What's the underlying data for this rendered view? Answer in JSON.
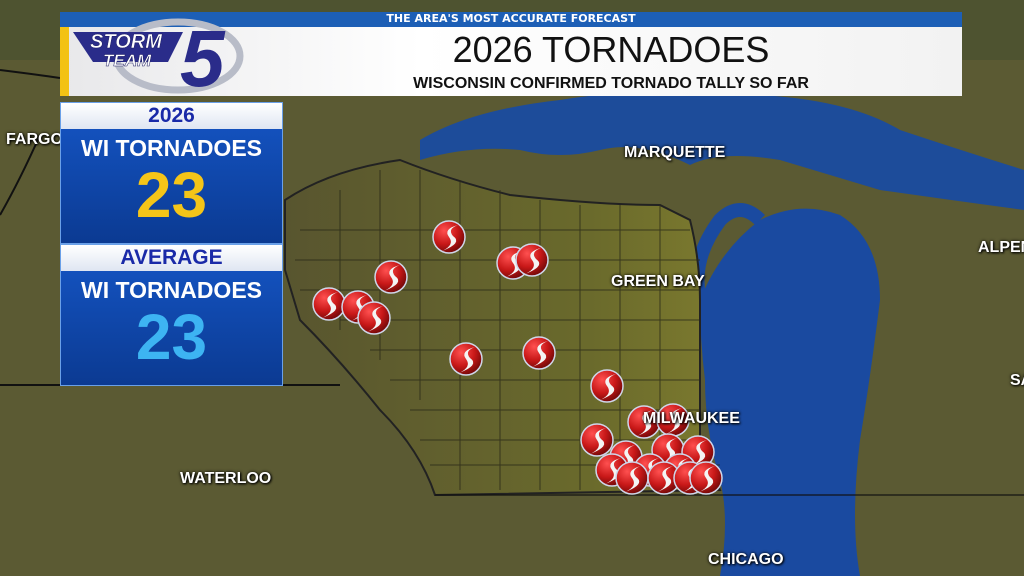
{
  "header": {
    "tagline": "THE AREA'S MOST ACCURATE FORECAST",
    "title": "2026 TORNADOES",
    "subtitle": "WISCONSIN CONFIRMED TORNADO TALLY SO FAR",
    "logo_text": [
      "STORM",
      "TEAM",
      "5"
    ]
  },
  "panels": [
    {
      "year": "2026",
      "label": "WI TORNADOES",
      "value": "23",
      "value_color": "#f5c518"
    },
    {
      "year": "AVERAGE",
      "label": "WI TORNADOES",
      "value": "23",
      "value_color": "#3db4f2"
    }
  ],
  "cities": [
    "FARGO",
    "MARQUETTE",
    "GREEN BAY",
    "MILWAUKEE",
    "WATERLOO",
    "CHICAGO",
    "ALPENA",
    "SA"
  ],
  "map": {
    "tornado_marker_count": 23,
    "colors": {
      "land": "#5b5a33",
      "water": "#1a4aa0",
      "marker": "#d42020"
    },
    "marker_icon": "tornado-ball-icon"
  }
}
